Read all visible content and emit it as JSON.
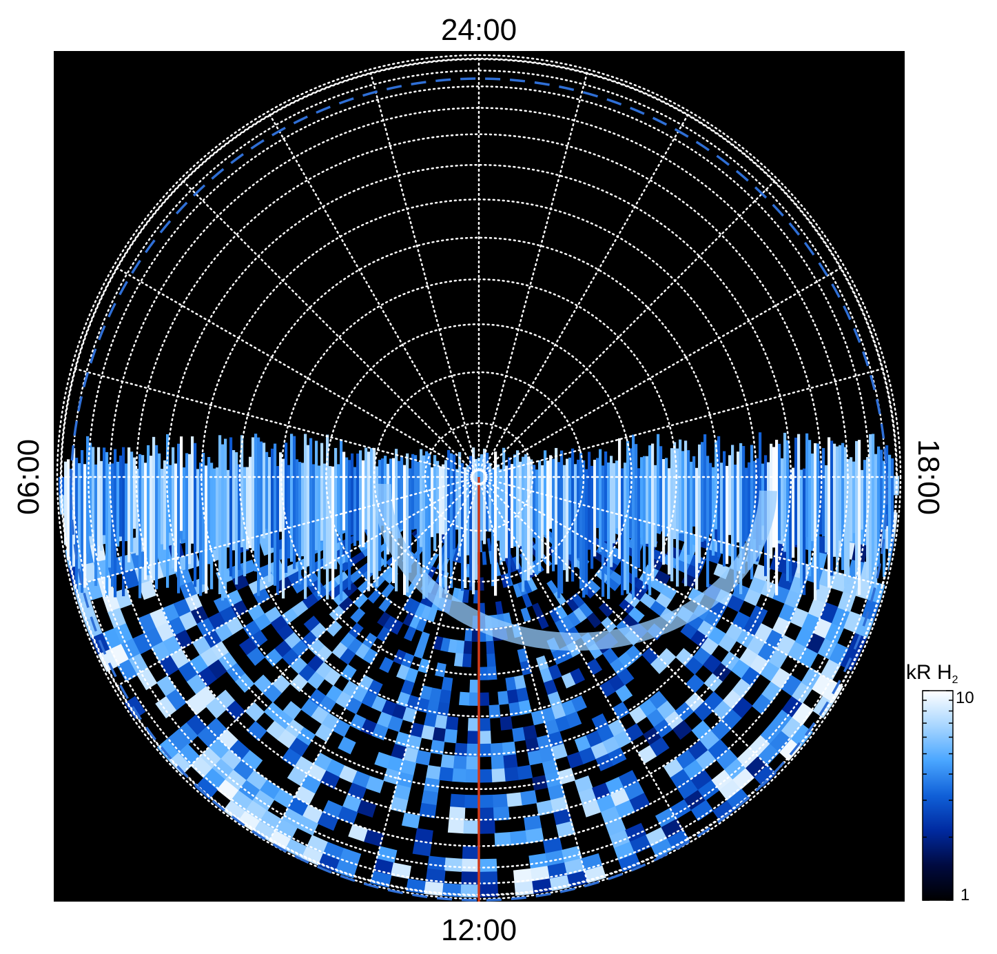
{
  "chart_data": {
    "type": "heatmap",
    "projection": "polar (north-pole view, local time around the rim)",
    "local_time_labels": {
      "top": "24:00",
      "bottom": "12:00",
      "left": "06:00",
      "right": "18:00"
    },
    "colorbar": {
      "title": "kR H",
      "title_subscript": "2",
      "min_label": "1",
      "max_label": "10",
      "min": 1,
      "max": 10,
      "scale": "log",
      "colormap": [
        "#000000",
        "#000a40",
        "#002aa0",
        "#1060d8",
        "#4aa6ff",
        "#a8d6ff",
        "#ffffff"
      ]
    },
    "grid": {
      "on": true,
      "style": "dotted white",
      "meridians_every_hours": 1,
      "colatitude_circles": 12
    },
    "overlays": {
      "dashed_oval_color": "#2f6fd6",
      "meridian_line_color": "#d23a1a",
      "meridian_line_local_time": "12:00",
      "pole_marker": "white circle at pole"
    },
    "emission": {
      "band_center_hours": [
        6,
        18
      ],
      "description_features": "bright band along the dawn-dusk terminator, patchy emission on dayside"
    },
    "background_color": "#000000"
  }
}
